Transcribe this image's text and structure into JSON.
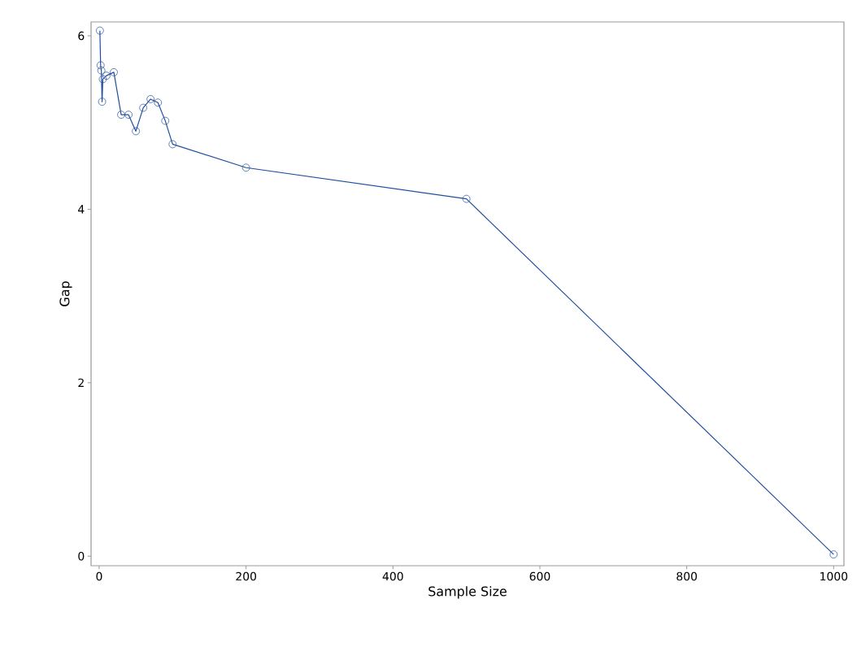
{
  "chart_data": {
    "type": "line",
    "xlabel": "Sample Size",
    "ylabel": "Gap",
    "x": [
      1,
      2,
      3,
      4,
      5,
      10,
      20,
      30,
      40,
      50,
      60,
      70,
      80,
      90,
      100,
      200,
      500,
      1000
    ],
    "series": [
      {
        "color": "#1f4e9e",
        "values": [
          6.06,
          5.66,
          5.6,
          5.24,
          5.5,
          5.54,
          5.58,
          5.09,
          5.09,
          4.9,
          5.17,
          5.27,
          5.23,
          5.02,
          4.75,
          4.48,
          4.12,
          0.02
        ]
      }
    ],
    "xlim": [
      -11,
      1014
    ],
    "ylim": [
      -0.11,
      6.16
    ],
    "xticks": [
      0,
      200,
      400,
      600,
      800,
      1000
    ],
    "yticks": [
      0,
      2,
      4,
      6
    ],
    "marker": "circle",
    "line_style": "solid"
  }
}
